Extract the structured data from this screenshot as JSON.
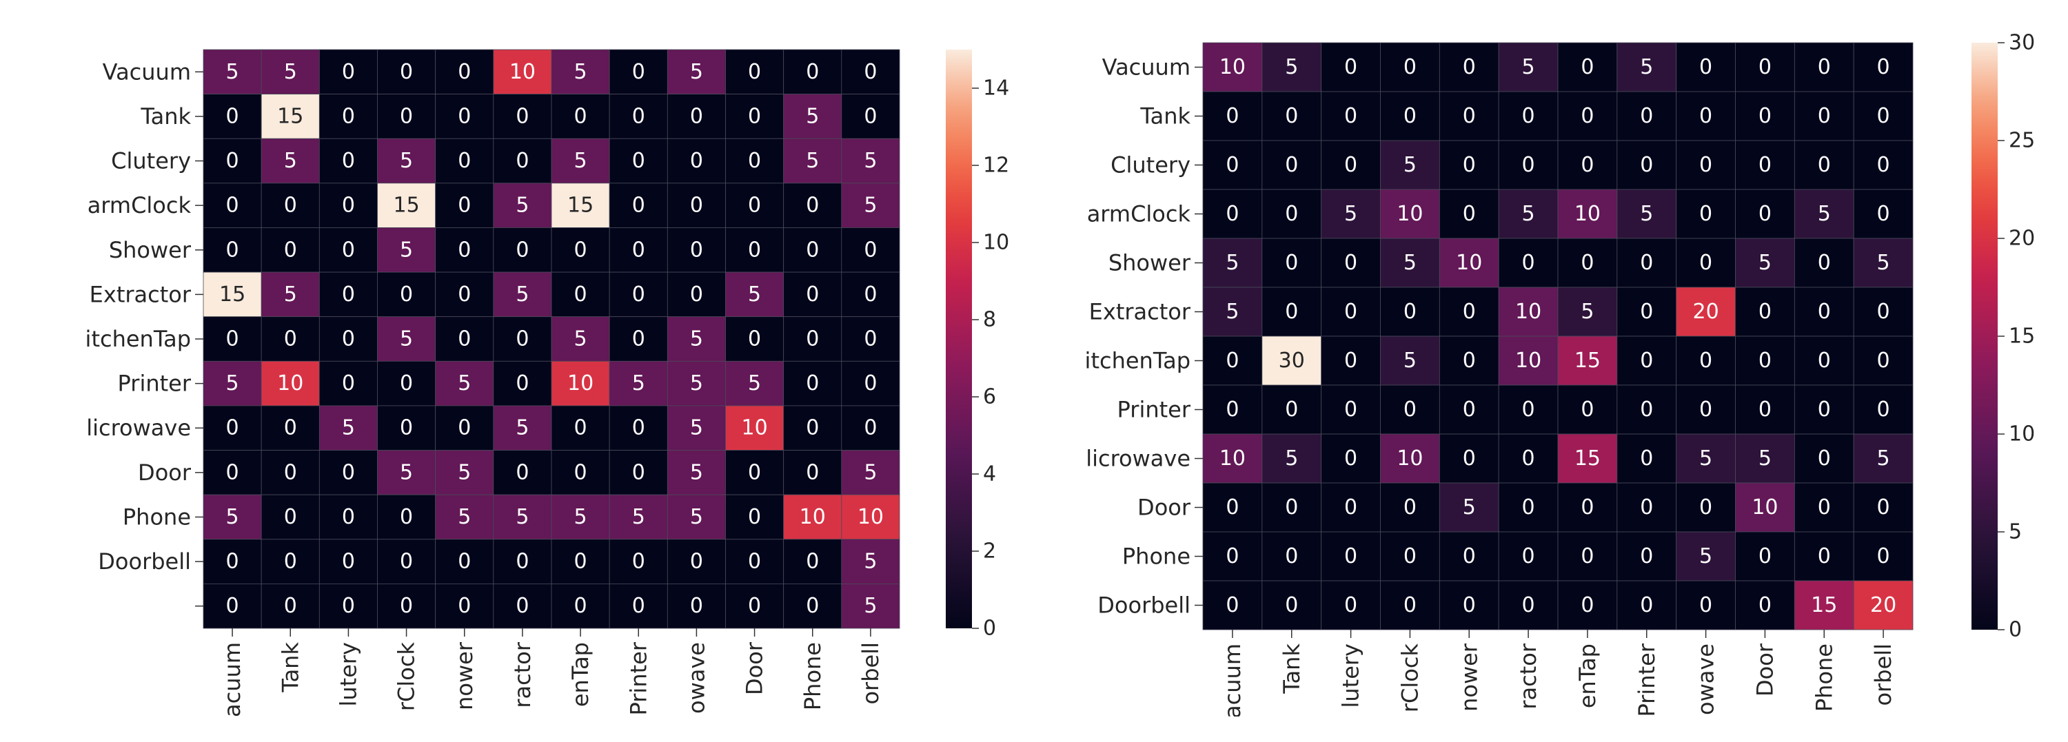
{
  "chart_data": [
    {
      "type": "heatmap",
      "title": "",
      "xlabel": "",
      "ylabel": "",
      "row_labels": [
        "Vacuum",
        "Tank",
        "Clutery",
        "armClock",
        "Shower",
        "Extractor",
        "itchenTap",
        "Printer",
        "licrowave",
        "Door",
        "Phone",
        "Doorbell",
        ""
      ],
      "col_labels": [
        "acuum",
        "Tank",
        "lutery",
        "rClock",
        "nower",
        "ractor",
        "enTap",
        "Printer",
        "owave",
        "Door",
        "Phone",
        "orbell"
      ],
      "values": [
        [
          5,
          5,
          0,
          0,
          0,
          10,
          5,
          0,
          5,
          0,
          0,
          0
        ],
        [
          0,
          15,
          0,
          0,
          0,
          0,
          0,
          0,
          0,
          0,
          5,
          0
        ],
        [
          0,
          5,
          0,
          5,
          0,
          0,
          5,
          0,
          0,
          0,
          5,
          5
        ],
        [
          0,
          0,
          0,
          15,
          0,
          5,
          15,
          0,
          0,
          0,
          0,
          5
        ],
        [
          0,
          0,
          0,
          5,
          0,
          0,
          0,
          0,
          0,
          0,
          0,
          0
        ],
        [
          15,
          5,
          0,
          0,
          0,
          5,
          0,
          0,
          0,
          5,
          0,
          0
        ],
        [
          0,
          0,
          0,
          5,
          0,
          0,
          5,
          0,
          5,
          0,
          0,
          0
        ],
        [
          5,
          10,
          0,
          0,
          5,
          0,
          10,
          5,
          5,
          5,
          0,
          0
        ],
        [
          0,
          0,
          5,
          0,
          0,
          5,
          0,
          0,
          5,
          10,
          0,
          0
        ],
        [
          0,
          0,
          0,
          5,
          5,
          0,
          0,
          0,
          5,
          0,
          0,
          5
        ],
        [
          5,
          0,
          0,
          0,
          5,
          5,
          5,
          5,
          5,
          0,
          10,
          10
        ],
        [
          0,
          0,
          0,
          0,
          0,
          0,
          0,
          0,
          0,
          0,
          0,
          5
        ],
        [
          0,
          0,
          0,
          0,
          0,
          0,
          0,
          0,
          0,
          0,
          0,
          5
        ]
      ],
      "colorbar": {
        "min": 0,
        "max": 15,
        "ticks": [
          0,
          2,
          4,
          6,
          8,
          10,
          12,
          14
        ]
      }
    },
    {
      "type": "heatmap",
      "title": "",
      "xlabel": "",
      "ylabel": "",
      "row_labels": [
        "Vacuum",
        "Tank",
        "Clutery",
        "armClock",
        "Shower",
        "Extractor",
        "itchenTap",
        "Printer",
        "licrowave",
        "Door",
        "Phone",
        "Doorbell"
      ],
      "col_labels": [
        "acuum",
        "Tank",
        "lutery",
        "rClock",
        "nower",
        "ractor",
        "enTap",
        "Printer",
        "owave",
        "Door",
        "Phone",
        "orbell"
      ],
      "values": [
        [
          10,
          5,
          0,
          0,
          0,
          5,
          0,
          5,
          0,
          0,
          0,
          0
        ],
        [
          0,
          0,
          0,
          0,
          0,
          0,
          0,
          0,
          0,
          0,
          0,
          0
        ],
        [
          0,
          0,
          0,
          5,
          0,
          0,
          0,
          0,
          0,
          0,
          0,
          0
        ],
        [
          0,
          0,
          5,
          10,
          0,
          5,
          10,
          5,
          0,
          0,
          5,
          0
        ],
        [
          5,
          0,
          0,
          5,
          10,
          0,
          0,
          0,
          0,
          5,
          0,
          5
        ],
        [
          5,
          0,
          0,
          0,
          0,
          10,
          5,
          0,
          20,
          0,
          0,
          0
        ],
        [
          0,
          30,
          0,
          5,
          0,
          10,
          15,
          0,
          0,
          0,
          0,
          0
        ],
        [
          0,
          0,
          0,
          0,
          0,
          0,
          0,
          0,
          0,
          0,
          0,
          0
        ],
        [
          10,
          5,
          0,
          10,
          0,
          0,
          15,
          0,
          5,
          5,
          0,
          5
        ],
        [
          0,
          0,
          0,
          0,
          5,
          0,
          0,
          0,
          0,
          10,
          0,
          0
        ],
        [
          0,
          0,
          0,
          0,
          0,
          0,
          0,
          0,
          5,
          0,
          0,
          0
        ],
        [
          0,
          0,
          0,
          0,
          0,
          0,
          0,
          0,
          0,
          0,
          15,
          20
        ]
      ],
      "colorbar": {
        "min": 0,
        "max": 30,
        "ticks": [
          0,
          5,
          10,
          15,
          20,
          25,
          30
        ]
      }
    }
  ]
}
